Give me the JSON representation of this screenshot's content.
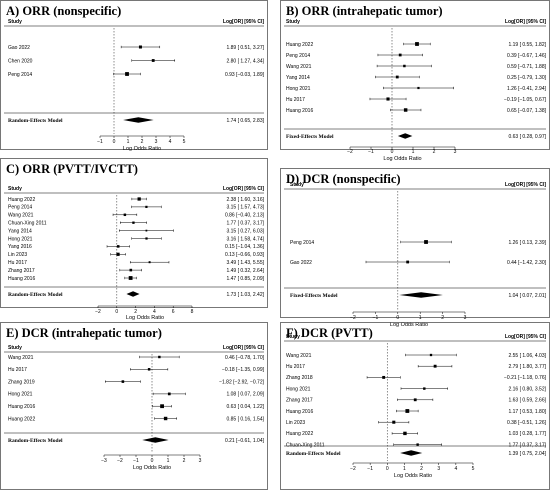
{
  "common": {
    "study_header": "Study",
    "value_header": "Log[OR] [95% CI]",
    "xlabel": "Log Odds Ratio"
  },
  "chart_data": [
    {
      "type": "forest",
      "title": "A) ORR (nonspecific)",
      "xlim": [
        -1,
        5
      ],
      "ticks": [
        -1,
        0,
        1,
        2,
        3,
        4,
        5
      ],
      "studies": [
        {
          "name": "Gao 2022",
          "est": 1.89,
          "lo": 0.51,
          "hi": 3.27,
          "label": "1.89 [ 0.51, 3.27]"
        },
        {
          "name": "Chen 2020",
          "est": 2.8,
          "lo": 1.27,
          "hi": 4.34,
          "label": "2.80 [ 1.27, 4.34]"
        },
        {
          "name": "Peng 2014",
          "est": 0.93,
          "lo": -0.03,
          "hi": 1.89,
          "label": "0.93 [−0.03, 1.89]"
        }
      ],
      "model": {
        "name": "Random-Effects Model",
        "est": 1.74,
        "lo": 0.65,
        "hi": 2.83,
        "label": "1.74 [ 0.65, 2.83]"
      }
    },
    {
      "type": "forest",
      "title": "B) ORR (intrahepatic tumor)",
      "xlim": [
        -2,
        3
      ],
      "ticks": [
        -2,
        -1,
        0,
        1,
        2,
        3
      ],
      "studies": [
        {
          "name": "Huang 2022",
          "est": 1.19,
          "lo": 0.55,
          "hi": 1.82,
          "label": "1.19 [ 0.55, 1.82]"
        },
        {
          "name": "Peng 2014",
          "est": 0.39,
          "lo": -0.67,
          "hi": 1.46,
          "label": "0.39 [−0.67, 1.46]"
        },
        {
          "name": "Wang 2021",
          "est": 0.59,
          "lo": -0.71,
          "hi": 1.88,
          "label": "0.59 [−0.71, 1.88]"
        },
        {
          "name": "Yang 2014",
          "est": 0.25,
          "lo": -0.79,
          "hi": 1.3,
          "label": "0.25 [−0.79, 1.30]"
        },
        {
          "name": "Hong 2021",
          "est": 1.26,
          "lo": -0.41,
          "hi": 2.94,
          "label": "1.26 [−0.41, 2.94]"
        },
        {
          "name": "Hu 2017",
          "est": -0.19,
          "lo": -1.05,
          "hi": 0.67,
          "label": "−0.19 [−1.05, 0.67]"
        },
        {
          "name": "Huang 2016",
          "est": 0.65,
          "lo": -0.07,
          "hi": 1.38,
          "label": "0.65 [−0.07, 1.38]"
        }
      ],
      "model": {
        "name": "Fixed-Effects Model",
        "est": 0.63,
        "lo": 0.28,
        "hi": 0.97,
        "label": "0.63 [ 0.28, 0.97]"
      }
    },
    {
      "type": "forest",
      "title": "C) ORR (PVTT/IVCTT)",
      "xlim": [
        -2,
        8
      ],
      "ticks": [
        -2,
        0,
        2,
        4,
        6,
        8
      ],
      "studies": [
        {
          "name": "Huang 2022",
          "est": 2.38,
          "lo": 1.6,
          "hi": 3.16,
          "label": "2.38 [ 1.60, 3.16]"
        },
        {
          "name": "Peng 2014",
          "est": 3.15,
          "lo": 1.57,
          "hi": 4.73,
          "label": "3.15 [ 1.57, 4.73]"
        },
        {
          "name": "Wang 2021",
          "est": 0.86,
          "lo": -0.4,
          "hi": 2.13,
          "label": "0.86 [−0.40, 2.13]"
        },
        {
          "name": "Chuan-Xing 2011",
          "est": 1.77,
          "lo": 0.37,
          "hi": 3.17,
          "label": "1.77 [ 0.37, 3.17]"
        },
        {
          "name": "Yang 2014",
          "est": 3.15,
          "lo": 0.27,
          "hi": 6.03,
          "label": "3.15 [ 0.27, 6.03]"
        },
        {
          "name": "Hong 2021",
          "est": 3.16,
          "lo": 1.58,
          "hi": 4.74,
          "label": "3.16 [ 1.58, 4.74]"
        },
        {
          "name": "Yang 2016",
          "est": 0.15,
          "lo": -1.04,
          "hi": 1.36,
          "label": "0.15 [−1.04, 1.36]"
        },
        {
          "name": "Lin 2023",
          "est": 0.13,
          "lo": -0.66,
          "hi": 0.93,
          "label": "0.13 [−0.66, 0.93]"
        },
        {
          "name": "Hu 2017",
          "est": 3.49,
          "lo": 1.43,
          "hi": 5.55,
          "label": "3.49 [ 1.43, 5.55]"
        },
        {
          "name": "Zhang 2017",
          "est": 1.49,
          "lo": 0.32,
          "hi": 2.64,
          "label": "1.49 [ 0.32, 2.64]"
        },
        {
          "name": "Huang 2016",
          "est": 1.47,
          "lo": 0.85,
          "hi": 2.09,
          "label": "1.47 [ 0.85, 2.09]"
        }
      ],
      "model": {
        "name": "Random-Effects Model",
        "est": 1.73,
        "lo": 1.03,
        "hi": 2.42,
        "label": "1.73 [ 1.03, 2.42]"
      }
    },
    {
      "type": "forest",
      "title": "D) DCR (nonspecific)",
      "xlim": [
        -2,
        3
      ],
      "ticks": [
        -2,
        -1,
        0,
        1,
        2,
        3
      ],
      "studies": [
        {
          "name": "Peng 2014",
          "est": 1.26,
          "lo": 0.13,
          "hi": 2.39,
          "label": "1.26 [ 0.13, 2.39]"
        },
        {
          "name": "Gao 2022",
          "est": 0.44,
          "lo": -1.42,
          "hi": 2.3,
          "label": "0.44 [−1.42, 2.30]"
        }
      ],
      "model": {
        "name": "Fixed-Effects Model",
        "est": 1.04,
        "lo": 0.07,
        "hi": 2.01,
        "label": "1.04 [ 0.07, 2.01]"
      }
    },
    {
      "type": "forest",
      "title": "E) DCR (intrahepatic tumor)",
      "xlim": [
        -3,
        3
      ],
      "ticks": [
        -3,
        -2,
        -1,
        0,
        1,
        2,
        3
      ],
      "studies": [
        {
          "name": "Wang 2021",
          "est": 0.46,
          "lo": -0.78,
          "hi": 1.7,
          "label": "0.46 [−0.78, 1.70]"
        },
        {
          "name": "Hu 2017",
          "est": -0.18,
          "lo": -1.35,
          "hi": 0.99,
          "label": "−0.18 [−1.35, 0.99]"
        },
        {
          "name": "Zhang 2019",
          "est": -1.82,
          "lo": -2.92,
          "hi": -0.72,
          "label": "−1.82 [−2.92, −0.72]"
        },
        {
          "name": "Hong 2021",
          "est": 1.08,
          "lo": 0.07,
          "hi": 2.09,
          "label": "1.08 [ 0.07, 2.09]"
        },
        {
          "name": "Huang 2016",
          "est": 0.63,
          "lo": 0.04,
          "hi": 1.22,
          "label": "0.63 [ 0.04, 1.22]"
        },
        {
          "name": "Huang 2022",
          "est": 0.85,
          "lo": 0.16,
          "hi": 1.54,
          "label": "0.85 [ 0.16, 1.54]"
        }
      ],
      "model": {
        "name": "Random-Effects Model",
        "est": 0.21,
        "lo": -0.61,
        "hi": 1.04,
        "label": "0.21 [−0.61, 1.04]"
      }
    },
    {
      "type": "forest",
      "title": "F) DCR (PVTT)",
      "xlim": [
        -2,
        5
      ],
      "ticks": [
        -2,
        -1,
        0,
        1,
        2,
        3,
        4,
        5
      ],
      "studies": [
        {
          "name": "Wang 2021",
          "est": 2.55,
          "lo": 1.06,
          "hi": 4.03,
          "label": "2.55 [ 1.06, 4.03]"
        },
        {
          "name": "Hu 2017",
          "est": 2.79,
          "lo": 1.8,
          "hi": 3.77,
          "label": "2.79 [ 1.80, 3.77]"
        },
        {
          "name": "Zhang 2018",
          "est": -0.21,
          "lo": -1.18,
          "hi": 0.76,
          "label": "−0.21 [−1.18, 0.76]"
        },
        {
          "name": "Hong 2021",
          "est": 2.16,
          "lo": 0.8,
          "hi": 3.52,
          "label": "2.16 [ 0.80, 3.52]"
        },
        {
          "name": "Zhang 2017",
          "est": 1.63,
          "lo": 0.59,
          "hi": 2.66,
          "label": "1.63 [ 0.59, 2.66]"
        },
        {
          "name": "Huang 2016",
          "est": 1.17,
          "lo": 0.53,
          "hi": 1.8,
          "label": "1.17 [ 0.53, 1.80]"
        },
        {
          "name": "Lin 2023",
          "est": 0.38,
          "lo": -0.51,
          "hi": 1.26,
          "label": "0.38 [−0.51, 1.26]"
        },
        {
          "name": "Huang 2022",
          "est": 1.03,
          "lo": 0.28,
          "hi": 1.77,
          "label": "1.03 [ 0.28, 1.77]"
        },
        {
          "name": "Chuan-Xing 2011",
          "est": 1.77,
          "lo": 0.37,
          "hi": 3.17,
          "label": "1.77 [ 0.37, 3.17]"
        }
      ],
      "model": {
        "name": "Random-Effects Model",
        "est": 1.39,
        "lo": 0.75,
        "hi": 2.04,
        "label": "1.39 [ 0.75, 2.04]"
      }
    }
  ]
}
